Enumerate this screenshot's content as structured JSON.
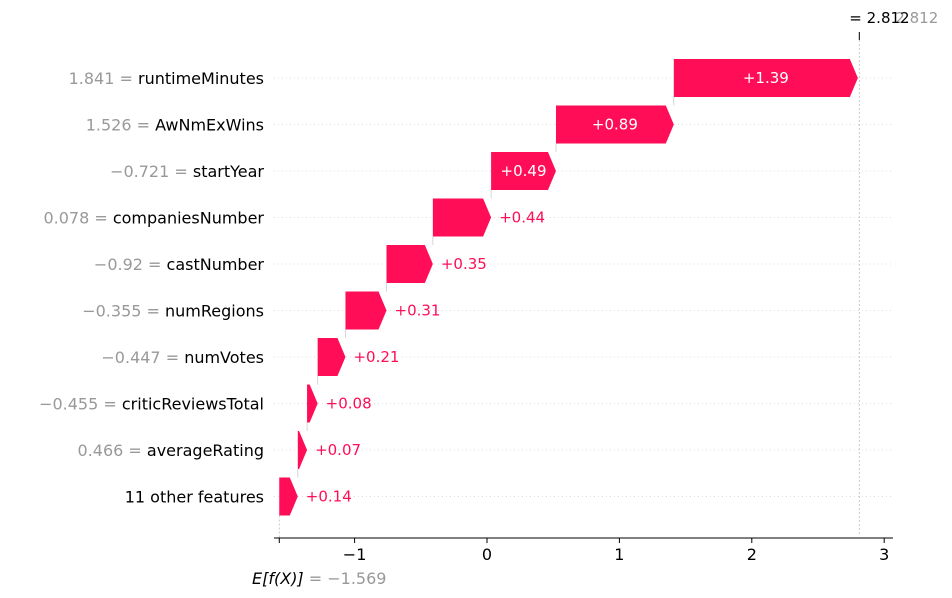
{
  "chart_data": {
    "type": "waterfall",
    "base_value": -1.569,
    "base_label_expr": "E[f(X)]",
    "base_value_text": "= −1.569",
    "final_value": 2.812,
    "final_value_text": "= 2.812",
    "final_value_ghost_text": "2.812",
    "bar_color": "#ff0d57",
    "x_ticks": [
      -1,
      0,
      1,
      2,
      3
    ],
    "x_tick_labels": [
      "−1",
      "0",
      "1",
      "2",
      "3"
    ],
    "xlim": [
      -1.57,
      3.07
    ],
    "features": [
      {
        "value_text": "1.841 =",
        "name": "runtimeMinutes",
        "contribution": 1.39,
        "label": "+1.39"
      },
      {
        "value_text": "1.526 =",
        "name": "AwNmExWins",
        "contribution": 0.89,
        "label": "+0.89"
      },
      {
        "value_text": "−0.721 =",
        "name": "startYear",
        "contribution": 0.49,
        "label": "+0.49"
      },
      {
        "value_text": "0.078 =",
        "name": "companiesNumber",
        "contribution": 0.44,
        "label": "+0.44"
      },
      {
        "value_text": "−0.92 =",
        "name": "castNumber",
        "contribution": 0.35,
        "label": "+0.35"
      },
      {
        "value_text": "−0.355 =",
        "name": "numRegions",
        "contribution": 0.31,
        "label": "+0.31"
      },
      {
        "value_text": "−0.447 =",
        "name": "numVotes",
        "contribution": 0.21,
        "label": "+0.21"
      },
      {
        "value_text": "−0.455 =",
        "name": "criticReviewsTotal",
        "contribution": 0.08,
        "label": "+0.08"
      },
      {
        "value_text": "0.466 =",
        "name": "averageRating",
        "contribution": 0.07,
        "label": "+0.07"
      },
      {
        "value_text": "",
        "name": "11 other features",
        "contribution": 0.14,
        "label": "+0.14"
      }
    ]
  }
}
